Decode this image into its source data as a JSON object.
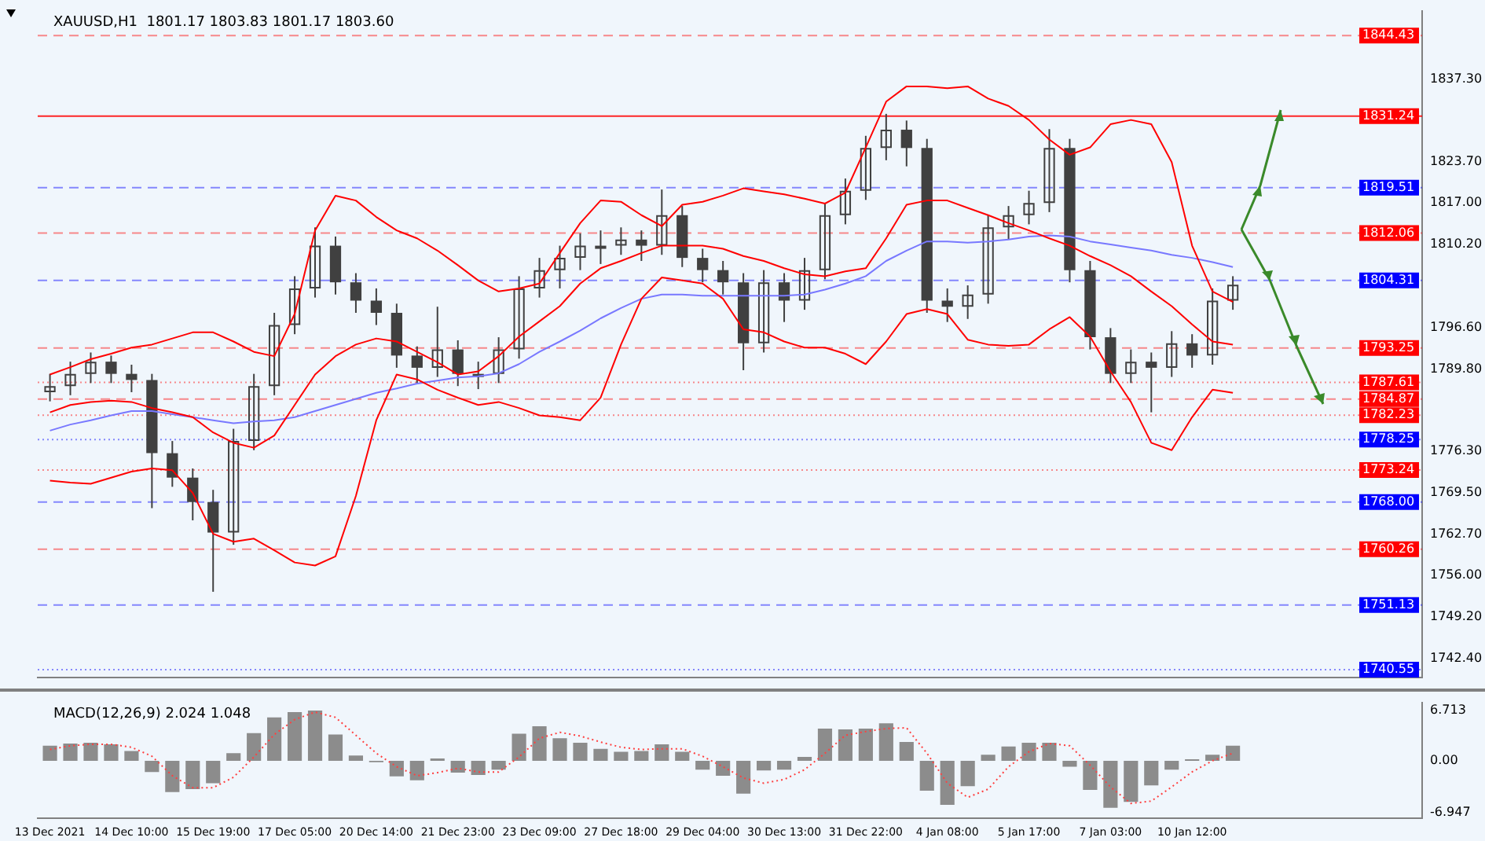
{
  "chart_data": [
    {
      "type": "candlestick",
      "tick_labels": "y",
      "annotations": [
        "XAUUSD,H1  1801.17 1803.83 1801.17 1803.60"
      ],
      "categories": [
        null,
        null,
        null,
        null,
        null,
        null,
        null,
        null,
        null,
        null,
        null,
        null,
        null,
        null,
        null,
        null,
        null,
        null,
        null,
        null,
        null,
        null,
        null,
        null,
        null,
        null,
        null,
        null,
        null,
        null,
        null,
        null,
        null,
        null,
        null,
        null,
        null,
        null,
        null,
        null,
        null,
        null,
        null,
        null,
        null,
        null,
        null,
        null,
        null,
        null,
        null,
        null,
        null,
        null,
        null,
        null,
        null,
        null,
        null
      ],
      "color": "#404040",
      "ohlc": [
        [
          1786,
          1789,
          1784.5,
          1787
        ],
        [
          1787,
          1791,
          1785.5,
          1789
        ],
        [
          1789,
          1792.5,
          1787.5,
          1791
        ],
        [
          1791,
          1792,
          1787.5,
          1789
        ],
        [
          1789,
          1790.5,
          1786,
          1788
        ],
        [
          1788,
          1789,
          1767,
          1776
        ],
        [
          1776,
          1778,
          1770.5,
          1772
        ],
        [
          1772,
          1773.5,
          1765,
          1768
        ],
        [
          1768,
          1770,
          1753.3,
          1763
        ],
        [
          1763,
          1780,
          1761,
          1778
        ],
        [
          1778,
          1789,
          1776.5,
          1787
        ],
        [
          1787,
          1799,
          1785.5,
          1797
        ],
        [
          1797,
          1805,
          1795.5,
          1803
        ],
        [
          1803,
          1813,
          1801.5,
          1810
        ],
        [
          1810,
          1811.5,
          1802,
          1804
        ],
        [
          1804,
          1805.5,
          1799,
          1801
        ],
        [
          1801,
          1803,
          1797,
          1799
        ],
        [
          1799,
          1800.5,
          1790,
          1792
        ],
        [
          1792,
          1793.5,
          1787.5,
          1790
        ],
        [
          1790,
          1800,
          1788.5,
          1793
        ],
        [
          1793,
          1794.5,
          1787,
          1789
        ],
        [
          1789,
          1791,
          1786.5,
          1789
        ],
        [
          1789,
          1795,
          1787.5,
          1793
        ],
        [
          1793,
          1805,
          1791.5,
          1803
        ],
        [
          1803,
          1808,
          1801.5,
          1806
        ],
        [
          1806,
          1810,
          1803,
          1808
        ],
        [
          1808,
          1812,
          1806,
          1810
        ],
        [
          1810,
          1812.5,
          1807,
          1810
        ],
        [
          1810,
          1813,
          1808.5,
          1811
        ],
        [
          1811,
          1812.5,
          1807.5,
          1810
        ],
        [
          1810,
          1819.2,
          1808.5,
          1815
        ],
        [
          1815,
          1816.5,
          1806.5,
          1808
        ],
        [
          1808,
          1809.5,
          1804,
          1806
        ],
        [
          1806,
          1807.5,
          1802,
          1804
        ],
        [
          1804,
          1805.5,
          1789.6,
          1794
        ],
        [
          1794,
          1806,
          1792.5,
          1804
        ],
        [
          1804,
          1805.5,
          1797.5,
          1801
        ],
        [
          1801,
          1808,
          1799.5,
          1806
        ],
        [
          1806,
          1817,
          1804.5,
          1815
        ],
        [
          1815,
          1821,
          1813.5,
          1819
        ],
        [
          1819,
          1828,
          1817.5,
          1826
        ],
        [
          1826,
          1831.6,
          1824,
          1829
        ],
        [
          1829,
          1830.5,
          1823,
          1826
        ],
        [
          1826,
          1827.5,
          1799,
          1801
        ],
        [
          1801,
          1803,
          1797.5,
          1800
        ],
        [
          1800,
          1803.5,
          1798,
          1802
        ],
        [
          1802,
          1815,
          1800.5,
          1813
        ],
        [
          1813,
          1816.5,
          1811,
          1815
        ],
        [
          1815,
          1819,
          1813.5,
          1817
        ],
        [
          1817,
          1829.1,
          1815.5,
          1826
        ],
        [
          1826,
          1827.5,
          1804,
          1806
        ],
        [
          1806,
          1807.5,
          1793,
          1795
        ],
        [
          1795,
          1796.5,
          1787.5,
          1789
        ],
        [
          1789,
          1793,
          1787.5,
          1791
        ],
        [
          1791,
          1792.5,
          1782.7,
          1790
        ],
        [
          1790,
          1796,
          1788.5,
          1794
        ],
        [
          1794,
          1795.5,
          1790,
          1792
        ],
        [
          1792,
          1803,
          1790.5,
          1801
        ],
        [
          1801,
          1805,
          1799.5,
          1803.6
        ]
      ],
      "series": [
        {
          "type": "line",
          "color": "#ff0000",
          "values": [
            1788.9,
            1790.1,
            1791.4,
            1792.3,
            1793.3,
            1793.8,
            1794.8,
            1795.8,
            1795.8,
            1794.3,
            1792.6,
            1791.9,
            1798.8,
            1812.5,
            1818.2,
            1817.4,
            1814.7,
            1812.5,
            1811.2,
            1809.2,
            1806.8,
            1804.3,
            1802.5,
            1803.0,
            1803.8,
            1808.8,
            1813.7,
            1817.4,
            1817.2,
            1815.0,
            1813.2,
            1816.7,
            1817.2,
            1818.2,
            1819.4,
            1818.9,
            1818.4,
            1817.7,
            1816.9,
            1818.7,
            1826.1,
            1833.6,
            1836.1,
            1836.1,
            1835.8,
            1836.1,
            1834.1,
            1832.9,
            1830.6,
            1827.4,
            1824.9,
            1826.1,
            1829.9,
            1830.6,
            1829.9,
            1823.7,
            1810.0,
            1802.5,
            1800.8
          ]
        },
        {
          "type": "line",
          "color": "#ff0000",
          "values": [
            1782.7,
            1783.9,
            1784.4,
            1784.6,
            1784.4,
            1783.4,
            1782.7,
            1781.9,
            1779.4,
            1777.7,
            1776.9,
            1778.9,
            1783.9,
            1788.9,
            1791.9,
            1793.8,
            1794.8,
            1794.3,
            1792.6,
            1790.9,
            1788.9,
            1789.4,
            1791.9,
            1795.1,
            1797.6,
            1800.1,
            1803.8,
            1806.3,
            1807.5,
            1808.8,
            1810.0,
            1810.0,
            1810.0,
            1809.5,
            1808.3,
            1807.5,
            1806.3,
            1805.3,
            1805.0,
            1805.8,
            1806.3,
            1811.2,
            1816.7,
            1817.4,
            1817.4,
            1816.2,
            1815.0,
            1813.7,
            1812.5,
            1811.2,
            1810.0,
            1808.3,
            1806.8,
            1805.0,
            1802.5,
            1800.1,
            1797.1,
            1794.3,
            1793.8
          ]
        },
        {
          "type": "line",
          "color": "#ff0000",
          "values": [
            1771.5,
            1771.2,
            1771.0,
            1772.0,
            1773.0,
            1773.5,
            1773.2,
            1769.5,
            1762.8,
            1761.5,
            1762.0,
            1760.1,
            1758.1,
            1757.6,
            1759.1,
            1769.0,
            1781.4,
            1788.9,
            1788.1,
            1786.4,
            1785.1,
            1783.9,
            1784.4,
            1783.4,
            1782.2,
            1781.9,
            1781.4,
            1785.1,
            1793.8,
            1801.3,
            1804.8,
            1804.3,
            1803.8,
            1801.3,
            1796.3,
            1795.8,
            1794.3,
            1793.3,
            1793.3,
            1792.3,
            1790.6,
            1794.3,
            1798.8,
            1799.6,
            1798.8,
            1794.6,
            1793.8,
            1793.6,
            1793.8,
            1796.3,
            1798.3,
            1795.1,
            1789.4,
            1784.4,
            1777.7,
            1776.5,
            1781.9,
            1786.4,
            1785.9
          ]
        },
        {
          "type": "line",
          "color": "#7878ff",
          "values": [
            1779.7,
            1780.7,
            1781.4,
            1782.2,
            1782.9,
            1782.9,
            1782.4,
            1781.9,
            1781.4,
            1780.9,
            1781.2,
            1781.4,
            1781.9,
            1782.9,
            1783.9,
            1784.9,
            1785.9,
            1786.6,
            1787.4,
            1787.9,
            1788.4,
            1788.6,
            1789.1,
            1790.6,
            1792.6,
            1794.3,
            1796.1,
            1798.1,
            1799.8,
            1801.3,
            1802.0,
            1802.0,
            1801.8,
            1801.8,
            1801.8,
            1801.8,
            1801.8,
            1802.0,
            1802.8,
            1803.8,
            1805.0,
            1807.5,
            1809.2,
            1810.7,
            1810.7,
            1810.5,
            1810.7,
            1811.0,
            1811.5,
            1811.7,
            1811.5,
            1810.7,
            1810.2,
            1809.7,
            1809.2,
            1808.5,
            1808.0,
            1807.3,
            1806.5
          ]
        }
      ],
      "ylim": [
        1739.2,
        1848.5
      ],
      "yticks": [
        {
          "value": 1742.4,
          "label": "1742.40"
        },
        {
          "value": 1749.2,
          "label": "1749.20"
        },
        {
          "value": 1756,
          "label": "1756.00"
        },
        {
          "value": 1762.7,
          "label": "1762.70"
        },
        {
          "value": 1769.5,
          "label": "1769.50"
        },
        {
          "value": 1776.3,
          "label": "1776.30"
        },
        {
          "value": 1789.8,
          "label": "1789.80"
        },
        {
          "value": 1796.6,
          "label": "1796.60"
        },
        {
          "value": 1810.2,
          "label": "1810.20"
        },
        {
          "value": 1817,
          "label": "1817.00"
        },
        {
          "value": 1823.7,
          "label": "1823.70"
        },
        {
          "value": 1837.3,
          "label": "1837.30"
        }
      ],
      "ref_lines": [
        {
          "axis": "y",
          "value": 1844.43,
          "label": "1844.43",
          "color": "#ff0000",
          "line_style": "dashed"
        },
        {
          "axis": "y",
          "value": 1831.24,
          "label": "1831.24",
          "color": "#ff0000",
          "line_style": "solid"
        },
        {
          "axis": "y",
          "value": 1819.51,
          "label": "1819.51",
          "color": "#0000ff",
          "line_style": "dashed"
        },
        {
          "axis": "y",
          "value": 1812.06,
          "label": "1812.06",
          "color": "#ff0000",
          "line_style": "dashed"
        },
        {
          "axis": "y",
          "value": 1804.31,
          "label": "1804.31",
          "color": "#0000ff",
          "line_style": "dashed"
        },
        {
          "axis": "y",
          "value": 1793.25,
          "label": "1793.25",
          "color": "#ff0000",
          "line_style": "dashed"
        },
        {
          "axis": "y",
          "value": 1787.61,
          "label": "1787.61",
          "color": "#ff0000",
          "line_style": "dotted"
        },
        {
          "axis": "y",
          "value": 1784.87,
          "label": "1784.87",
          "color": "#ff0000",
          "line_style": "dashed"
        },
        {
          "axis": "y",
          "value": 1782.23,
          "label": "1782.23",
          "color": "#ff0000",
          "line_style": "dotted"
        },
        {
          "axis": "y",
          "value": 1778.25,
          "label": "1778.25",
          "color": "#0000ff",
          "line_style": "dotted"
        },
        {
          "axis": "y",
          "value": 1773.24,
          "label": "1773.24",
          "color": "#ff0000",
          "line_style": "dotted"
        },
        {
          "axis": "y",
          "value": 1768.0,
          "label": "1768.00",
          "color": "#0000ff",
          "line_style": "dashed"
        },
        {
          "axis": "y",
          "value": 1760.26,
          "label": "1760.26",
          "color": "#ff0000",
          "line_style": "dashed"
        },
        {
          "axis": "y",
          "value": 1751.13,
          "label": "1751.13",
          "color": "#0000ff",
          "line_style": "dashed"
        },
        {
          "axis": "y",
          "value": 1740.55,
          "label": "1740.55",
          "color": "#0000ff",
          "line_style": "dotted"
        }
      ]
    },
    {
      "type": "bar",
      "annotations": [
        "MACD(12,26,9) 2.024 1.048"
      ],
      "categories": [
        "13 Dec 2021",
        null,
        null,
        null,
        "14 Dec 10:00",
        null,
        null,
        null,
        "15 Dec 19:00",
        null,
        null,
        null,
        "17 Dec 05:00",
        null,
        null,
        null,
        "20 Dec 14:00",
        null,
        null,
        null,
        "21 Dec 23:00",
        null,
        null,
        null,
        "23 Dec 09:00",
        null,
        null,
        null,
        "27 Dec 18:00",
        null,
        null,
        null,
        "29 Dec 04:00",
        null,
        null,
        null,
        "30 Dec 13:00",
        null,
        null,
        null,
        "31 Dec 22:00",
        null,
        null,
        null,
        "4 Jan 08:00",
        null,
        null,
        null,
        "5 Jan 17:00",
        null,
        null,
        null,
        "7 Jan 03:00",
        null,
        null,
        null,
        "10 Jan 12:00",
        null,
        null
      ],
      "series": [
        {
          "type": "bar",
          "color": "#8c8c8c",
          "values": [
            2.0,
            2.3,
            2.4,
            2.2,
            1.3,
            -1.5,
            -4.2,
            -3.8,
            -3.0,
            1.0,
            3.7,
            5.8,
            6.5,
            6.7,
            3.5,
            0.7,
            -0.2,
            -2.1,
            -2.6,
            0.3,
            -1.6,
            -1.9,
            -1.2,
            3.6,
            4.6,
            3.0,
            2.4,
            1.6,
            1.2,
            1.3,
            2.2,
            1.2,
            -1.2,
            -2.0,
            -4.4,
            -1.3,
            -1.2,
            0.5,
            4.3,
            4.2,
            4.3,
            5.0,
            2.5,
            -4.0,
            -5.9,
            -3.4,
            0.8,
            1.9,
            2.4,
            2.4,
            -0.8,
            -3.9,
            -6.3,
            -5.5,
            -3.3,
            -1.2,
            0.2,
            0.8,
            2.0
          ]
        },
        {
          "type": "line",
          "color": "#ff4040",
          "line_style": "dotted",
          "values": [
            1.5,
            2.0,
            2.2,
            2.2,
            1.8,
            0.6,
            -2.0,
            -3.6,
            -3.6,
            -2.2,
            0.5,
            3.5,
            5.5,
            6.5,
            5.8,
            3.4,
            1.0,
            -0.8,
            -2.0,
            -1.6,
            -1.0,
            -1.5,
            -1.5,
            0.5,
            3.0,
            3.8,
            3.3,
            2.5,
            1.8,
            1.5,
            1.6,
            1.6,
            0.6,
            -0.8,
            -2.3,
            -3.0,
            -2.5,
            -1.2,
            1.0,
            3.4,
            3.9,
            4.3,
            4.4,
            1.0,
            -3.0,
            -4.9,
            -3.8,
            -0.8,
            1.2,
            2.3,
            2.0,
            -0.6,
            -3.5,
            -5.7,
            -5.4,
            -3.5,
            -1.5,
            0.0,
            1.0
          ]
        }
      ],
      "ylim": [
        -7.7,
        7.8
      ],
      "yticks": [
        6.713,
        {
          "value": 0,
          "label": "0.00"
        },
        -6.947
      ]
    }
  ]
}
